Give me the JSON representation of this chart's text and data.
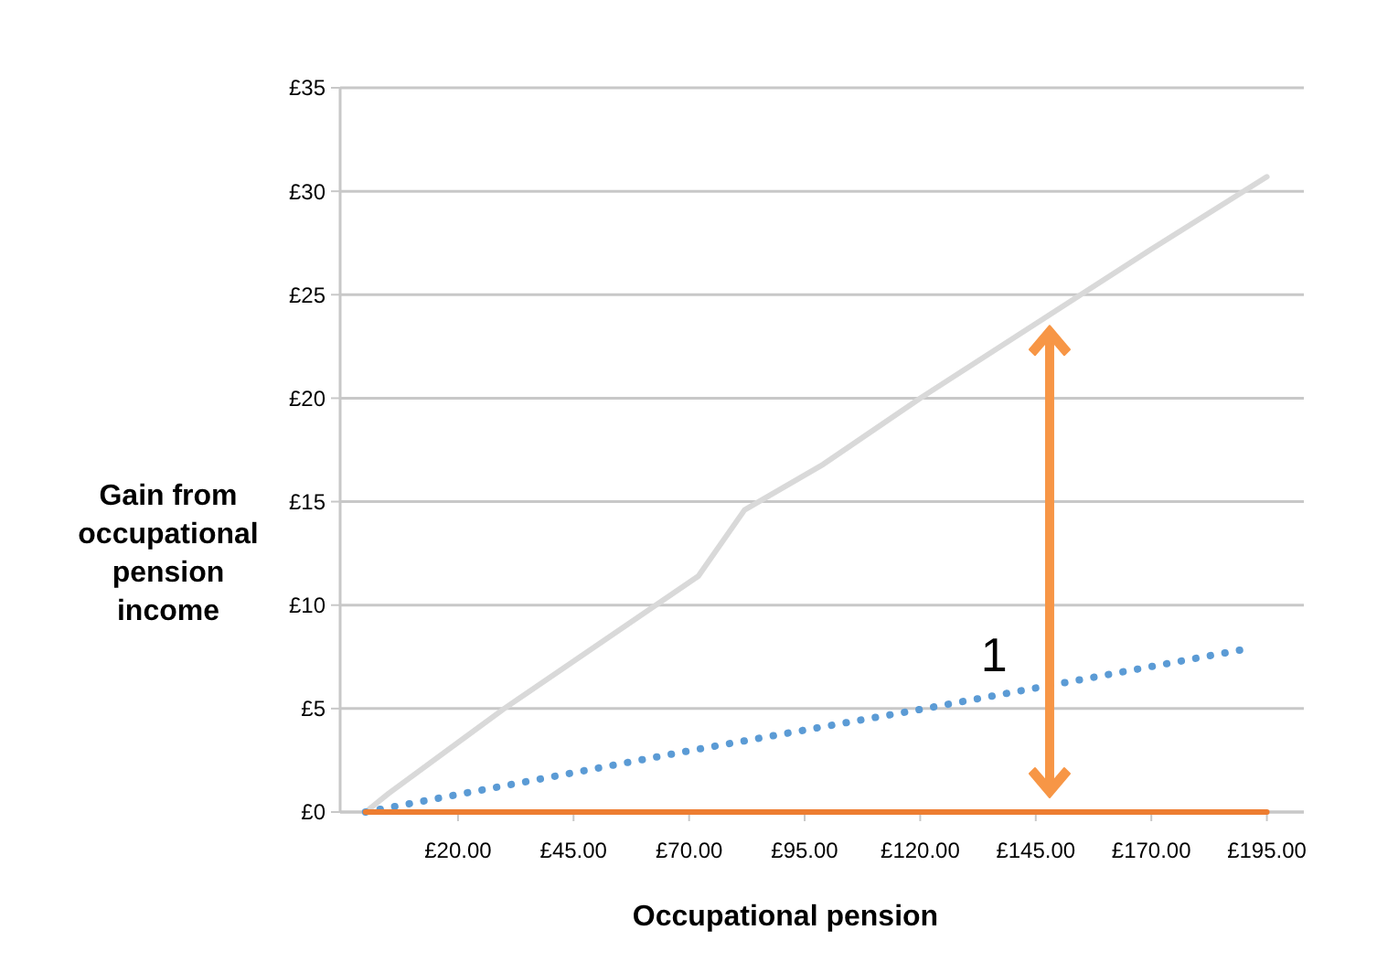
{
  "chart_data": {
    "type": "line",
    "xlabel": "Occupational pension",
    "ylabel": "Gain from occupational pension income",
    "xlim": [
      -5.5,
      203
    ],
    "xticks": [
      {
        "value": 20,
        "label": "£20.00"
      },
      {
        "value": 45,
        "label": "£45.00"
      },
      {
        "value": 70,
        "label": "£70.00"
      },
      {
        "value": 95,
        "label": "£95.00"
      },
      {
        "value": 120,
        "label": "£120.00"
      },
      {
        "value": 145,
        "label": "£145.00"
      },
      {
        "value": 170,
        "label": "£170.00"
      },
      {
        "value": 195,
        "label": "£195.00"
      }
    ],
    "ylim": [
      0,
      35
    ],
    "yticks": [
      {
        "value": 0,
        "label": "£0"
      },
      {
        "value": 5,
        "label": "£5"
      },
      {
        "value": 10,
        "label": "£10"
      },
      {
        "value": 15,
        "label": "£15"
      },
      {
        "value": 20,
        "label": "£20"
      },
      {
        "value": 25,
        "label": "£25"
      },
      {
        "value": 30,
        "label": "£30"
      },
      {
        "value": 35,
        "label": "£35"
      }
    ],
    "grid": "y",
    "marker": "none",
    "series": [
      {
        "color": "#d9d9d9",
        "line_style": "solid",
        "x": [
          0,
          5,
          30,
          72,
          82,
          99,
          120,
          145,
          170,
          195
        ],
        "values": [
          0,
          0.9,
          5,
          11.4,
          14.6,
          16.8,
          20,
          23.6,
          27.2,
          30.7
        ]
      },
      {
        "color": "#5b9bd5",
        "line_style": "dotted",
        "x": [
          0,
          71,
          121,
          191
        ],
        "values": [
          0,
          3.0,
          5.0,
          7.9
        ]
      },
      {
        "color": "#ed7d31",
        "line_style": "solid",
        "x": [
          0,
          195
        ],
        "values": [
          0,
          0
        ]
      }
    ],
    "annotations": [
      "1"
    ]
  }
}
